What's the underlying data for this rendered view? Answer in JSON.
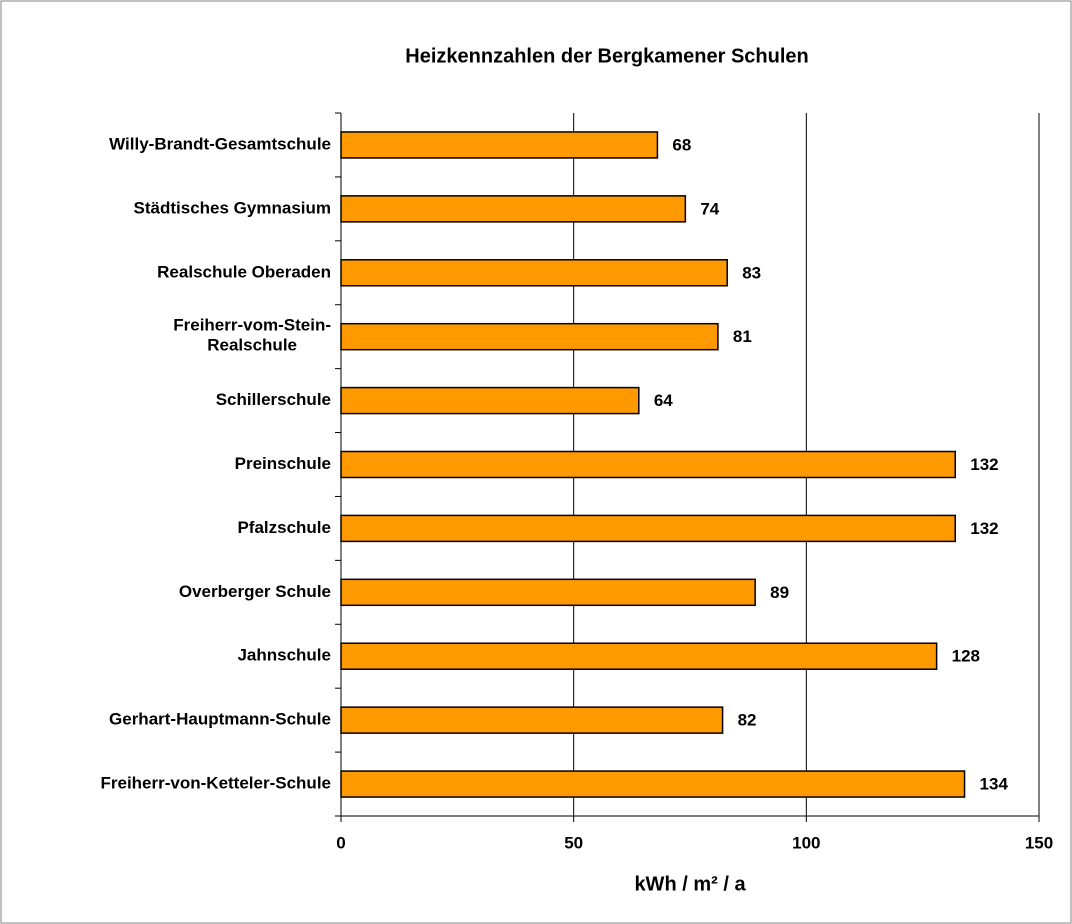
{
  "chart_data": {
    "type": "bar",
    "orientation": "horizontal",
    "title": "Heizkennzahlen der Bergkamener Schulen",
    "x_label": "kWh / m² / a",
    "categories": [
      "Willy-Brandt-Gesamtschule",
      "Städtisches Gymnasium",
      "Realschule Oberaden",
      "Freiherr-vom-Stein-Realschule",
      "Schillerschule",
      "Preinschule",
      "Pfalzschule",
      "Overberger Schule",
      "Jahnschule",
      "Gerhart-Hauptmann-Schule",
      "Freiherr-von-Ketteler-Schule"
    ],
    "values": [
      68,
      74,
      83,
      81,
      64,
      132,
      132,
      89,
      128,
      82,
      134
    ],
    "color": "#ff9900",
    "xlim": [
      0,
      150
    ],
    "xticks": [
      0,
      50,
      100,
      150
    ],
    "grid": true
  }
}
